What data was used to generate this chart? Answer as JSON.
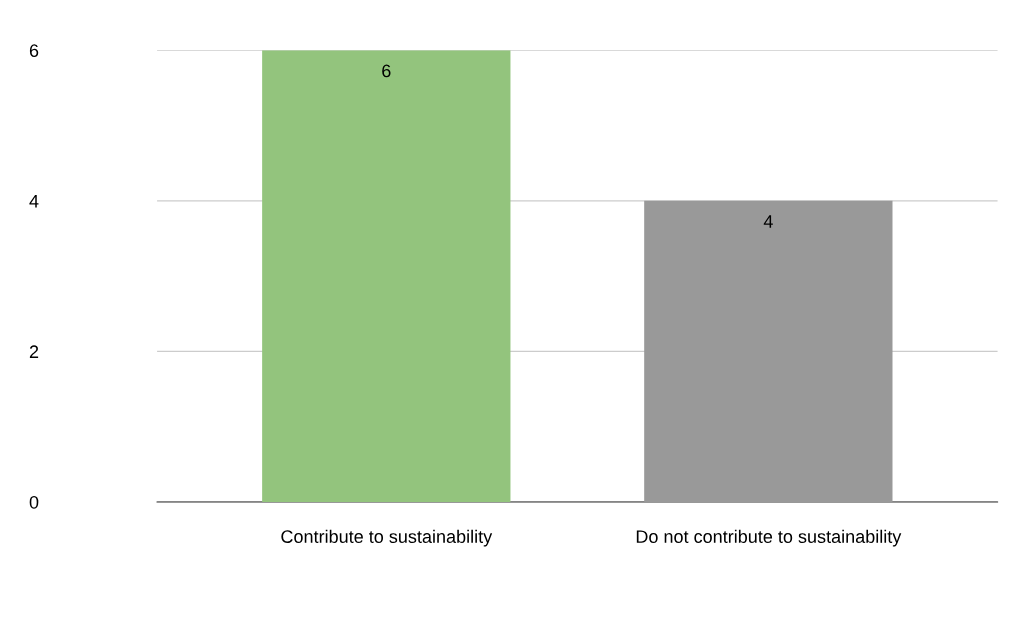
{
  "chart_data": {
    "type": "bar",
    "categories": [
      "Contribute to sustainability",
      "Do not contribute to sustainability"
    ],
    "values": [
      6,
      4
    ],
    "colors": [
      "#93c47d",
      "#999999"
    ],
    "ylim": [
      0,
      6
    ],
    "yticks": [
      0,
      2,
      4,
      6
    ],
    "grid": "y",
    "data_labels": true
  }
}
